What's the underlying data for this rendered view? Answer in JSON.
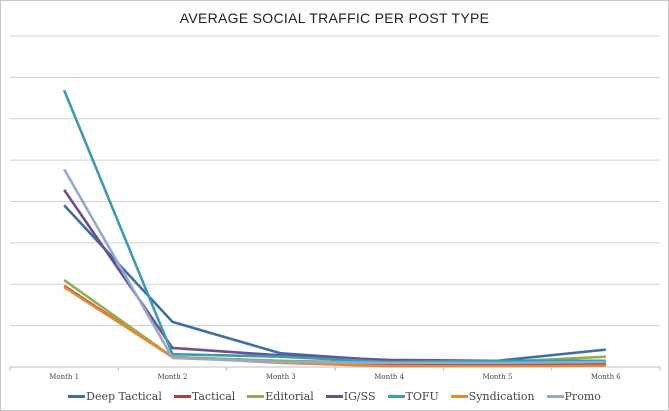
{
  "chart_data": {
    "type": "line",
    "title": "AVERAGE SOCIAL TRAFFIC PER POST TYPE",
    "xlabel": "",
    "ylabel": "",
    "categories": [
      "Month 1",
      "Month 2",
      "Month 3",
      "Month 4",
      "Month 5",
      "Month 6"
    ],
    "ylim": [
      0,
      8
    ],
    "grid": true,
    "legend": "bottom",
    "series": [
      {
        "name": "Deep Tactical",
        "color": "#3f6ea6",
        "values": [
          3.91,
          1.09,
          0.33,
          0.15,
          0.15,
          0.42
        ]
      },
      {
        "name": "Tactical",
        "color": "#b0403c",
        "values": [
          1.96,
          0.24,
          0.12,
          0.08,
          0.08,
          0.08
        ]
      },
      {
        "name": "Editorial",
        "color": "#8fae4a",
        "values": [
          2.1,
          0.24,
          0.15,
          0.1,
          0.12,
          0.25
        ]
      },
      {
        "name": "IG/SS",
        "color": "#6b4f93",
        "values": [
          4.28,
          0.46,
          0.28,
          0.17,
          0.15,
          0.12
        ]
      },
      {
        "name": "TOFU",
        "color": "#3b9bb0",
        "values": [
          6.69,
          0.31,
          0.25,
          0.12,
          0.15,
          0.15
        ]
      },
      {
        "name": "Syndication",
        "color": "#e08a3a",
        "values": [
          1.93,
          0.24,
          0.1,
          0.02,
          0.02,
          0.03
        ]
      },
      {
        "name": "Promo",
        "color": "#93a9d0",
        "values": [
          4.78,
          0.22,
          0.12,
          0.1,
          0.1,
          0.12
        ]
      }
    ]
  }
}
